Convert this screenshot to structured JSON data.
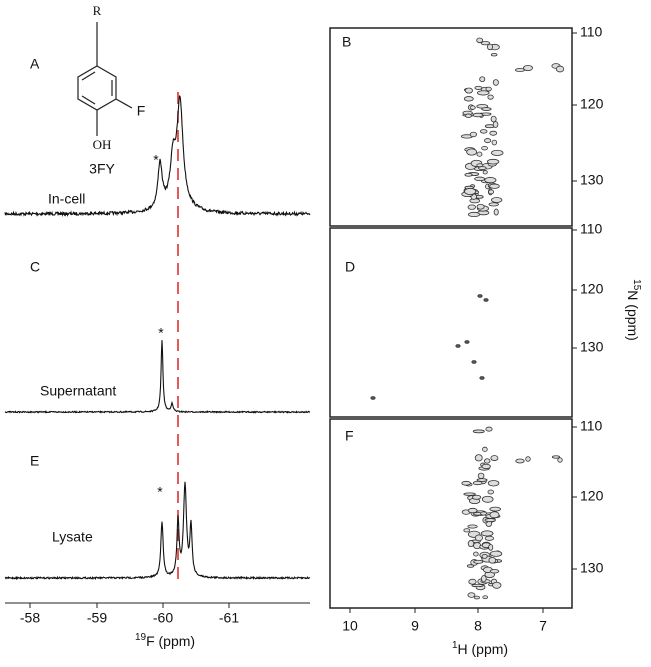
{
  "left_panel": {
    "panels": [
      {
        "label": "A",
        "sample": "In-cell"
      },
      {
        "label": "C",
        "sample": "Supernatant"
      },
      {
        "label": "E",
        "sample": "Lysate"
      }
    ],
    "peak_markers": [
      "*",
      "*",
      "*"
    ],
    "structure": {
      "substituent": "R",
      "fluorine": "F",
      "hydroxyl": "OH",
      "name": "3FY"
    },
    "x_axis": {
      "ticks": [
        "-58",
        "-59",
        "-60",
        "-61"
      ],
      "title": {
        "superscript": "19",
        "text": "F  (ppm)"
      }
    }
  },
  "right_panel": {
    "panels": [
      {
        "label": "B",
        "y_ticks": [
          "110",
          "120",
          "130"
        ]
      },
      {
        "label": "D",
        "y_ticks": [
          "110",
          "120",
          "130"
        ]
      },
      {
        "label": "F",
        "y_ticks": [
          "110",
          "120",
          "130"
        ]
      }
    ],
    "x_axis": {
      "ticks": [
        "10",
        "9",
        "8",
        "7"
      ],
      "title": {
        "superscript": "1",
        "text": "H (ppm)"
      }
    },
    "y_axis": {
      "title": {
        "superscript": "15",
        "text": "N (ppm)"
      }
    }
  }
}
